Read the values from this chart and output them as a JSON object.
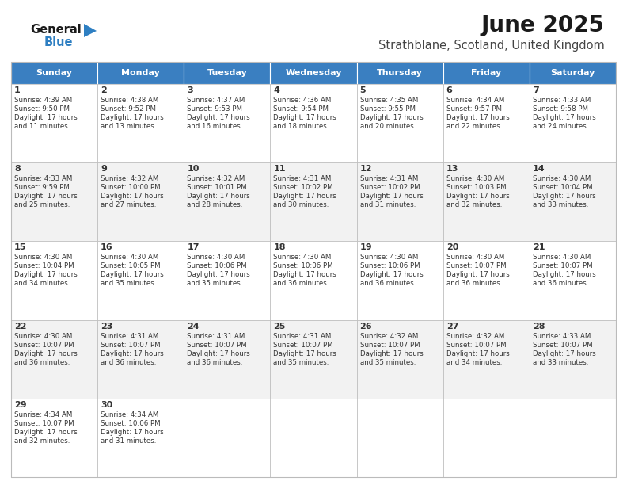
{
  "title": "June 2025",
  "subtitle": "Strathblane, Scotland, United Kingdom",
  "days_of_week": [
    "Sunday",
    "Monday",
    "Tuesday",
    "Wednesday",
    "Thursday",
    "Friday",
    "Saturday"
  ],
  "header_bg": "#3a7fc1",
  "header_text": "#ffffff",
  "cell_bg_odd": "#f2f2f2",
  "cell_bg_even": "#ffffff",
  "cell_text": "#333333",
  "grid_color": "#bbbbbb",
  "logo_general_color": "#1a1a1a",
  "logo_blue_color": "#2e7fc2",
  "title_color": "#1a1a1a",
  "subtitle_color": "#444444",
  "calendar": [
    [
      {
        "day": 1,
        "sunrise": "4:39 AM",
        "sunset": "9:50 PM",
        "daylight": "17 hours and 11 minutes."
      },
      {
        "day": 2,
        "sunrise": "4:38 AM",
        "sunset": "9:52 PM",
        "daylight": "17 hours and 13 minutes."
      },
      {
        "day": 3,
        "sunrise": "4:37 AM",
        "sunset": "9:53 PM",
        "daylight": "17 hours and 16 minutes."
      },
      {
        "day": 4,
        "sunrise": "4:36 AM",
        "sunset": "9:54 PM",
        "daylight": "17 hours and 18 minutes."
      },
      {
        "day": 5,
        "sunrise": "4:35 AM",
        "sunset": "9:55 PM",
        "daylight": "17 hours and 20 minutes."
      },
      {
        "day": 6,
        "sunrise": "4:34 AM",
        "sunset": "9:57 PM",
        "daylight": "17 hours and 22 minutes."
      },
      {
        "day": 7,
        "sunrise": "4:33 AM",
        "sunset": "9:58 PM",
        "daylight": "17 hours and 24 minutes."
      }
    ],
    [
      {
        "day": 8,
        "sunrise": "4:33 AM",
        "sunset": "9:59 PM",
        "daylight": "17 hours and 25 minutes."
      },
      {
        "day": 9,
        "sunrise": "4:32 AM",
        "sunset": "10:00 PM",
        "daylight": "17 hours and 27 minutes."
      },
      {
        "day": 10,
        "sunrise": "4:32 AM",
        "sunset": "10:01 PM",
        "daylight": "17 hours and 28 minutes."
      },
      {
        "day": 11,
        "sunrise": "4:31 AM",
        "sunset": "10:02 PM",
        "daylight": "17 hours and 30 minutes."
      },
      {
        "day": 12,
        "sunrise": "4:31 AM",
        "sunset": "10:02 PM",
        "daylight": "17 hours and 31 minutes."
      },
      {
        "day": 13,
        "sunrise": "4:30 AM",
        "sunset": "10:03 PM",
        "daylight": "17 hours and 32 minutes."
      },
      {
        "day": 14,
        "sunrise": "4:30 AM",
        "sunset": "10:04 PM",
        "daylight": "17 hours and 33 minutes."
      }
    ],
    [
      {
        "day": 15,
        "sunrise": "4:30 AM",
        "sunset": "10:04 PM",
        "daylight": "17 hours and 34 minutes."
      },
      {
        "day": 16,
        "sunrise": "4:30 AM",
        "sunset": "10:05 PM",
        "daylight": "17 hours and 35 minutes."
      },
      {
        "day": 17,
        "sunrise": "4:30 AM",
        "sunset": "10:06 PM",
        "daylight": "17 hours and 35 minutes."
      },
      {
        "day": 18,
        "sunrise": "4:30 AM",
        "sunset": "10:06 PM",
        "daylight": "17 hours and 36 minutes."
      },
      {
        "day": 19,
        "sunrise": "4:30 AM",
        "sunset": "10:06 PM",
        "daylight": "17 hours and 36 minutes."
      },
      {
        "day": 20,
        "sunrise": "4:30 AM",
        "sunset": "10:07 PM",
        "daylight": "17 hours and 36 minutes."
      },
      {
        "day": 21,
        "sunrise": "4:30 AM",
        "sunset": "10:07 PM",
        "daylight": "17 hours and 36 minutes."
      }
    ],
    [
      {
        "day": 22,
        "sunrise": "4:30 AM",
        "sunset": "10:07 PM",
        "daylight": "17 hours and 36 minutes."
      },
      {
        "day": 23,
        "sunrise": "4:31 AM",
        "sunset": "10:07 PM",
        "daylight": "17 hours and 36 minutes."
      },
      {
        "day": 24,
        "sunrise": "4:31 AM",
        "sunset": "10:07 PM",
        "daylight": "17 hours and 36 minutes."
      },
      {
        "day": 25,
        "sunrise": "4:31 AM",
        "sunset": "10:07 PM",
        "daylight": "17 hours and 35 minutes."
      },
      {
        "day": 26,
        "sunrise": "4:32 AM",
        "sunset": "10:07 PM",
        "daylight": "17 hours and 35 minutes."
      },
      {
        "day": 27,
        "sunrise": "4:32 AM",
        "sunset": "10:07 PM",
        "daylight": "17 hours and 34 minutes."
      },
      {
        "day": 28,
        "sunrise": "4:33 AM",
        "sunset": "10:07 PM",
        "daylight": "17 hours and 33 minutes."
      }
    ],
    [
      {
        "day": 29,
        "sunrise": "4:34 AM",
        "sunset": "10:07 PM",
        "daylight": "17 hours and 32 minutes."
      },
      {
        "day": 30,
        "sunrise": "4:34 AM",
        "sunset": "10:06 PM",
        "daylight": "17 hours and 31 minutes."
      },
      null,
      null,
      null,
      null,
      null
    ]
  ],
  "fig_width": 7.92,
  "fig_height": 6.12,
  "dpi": 100
}
